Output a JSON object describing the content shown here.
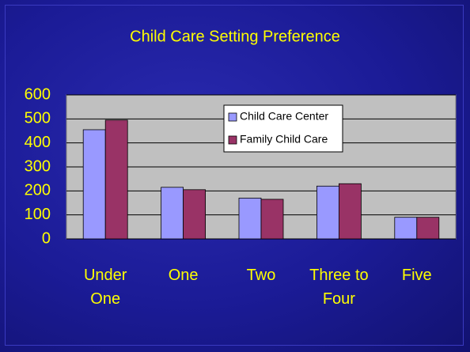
{
  "chart_data": {
    "type": "bar",
    "title": "Child Care Setting Preference",
    "categories": [
      "Under One",
      "One",
      "Two",
      "Three to Four",
      "Five"
    ],
    "series": [
      {
        "name": "Child Care Center",
        "color": "#9999ff",
        "values": [
          455,
          215,
          170,
          220,
          90
        ]
      },
      {
        "name": "Family Child Care",
        "color": "#993366",
        "values": [
          495,
          205,
          165,
          230,
          90
        ]
      }
    ],
    "ylim": [
      0,
      600
    ],
    "yticks": [
      0,
      100,
      200,
      300,
      400,
      500,
      600
    ],
    "grid": true,
    "legend": "top"
  }
}
